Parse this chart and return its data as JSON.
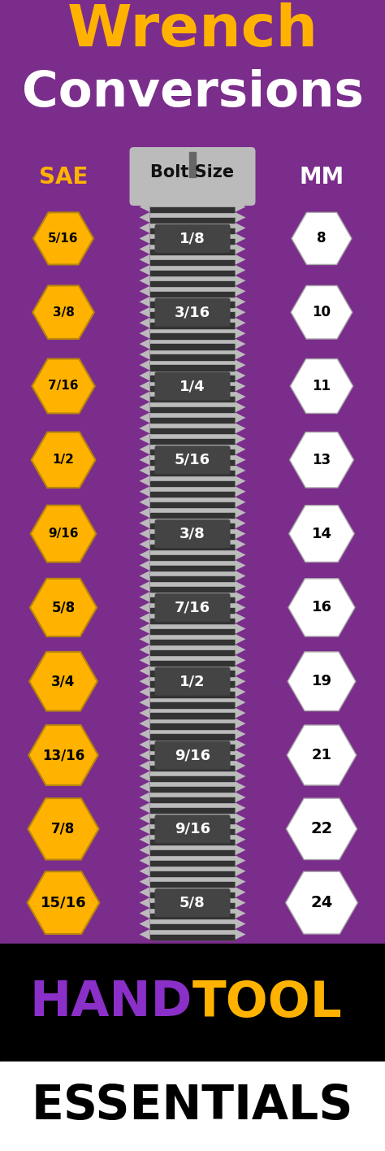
{
  "title_line1": "Wrench",
  "title_line2": "Conversions",
  "title_color_wrench": "#FFB300",
  "title_color_conversions": "#FFFFFF",
  "bg_color_top": "#7B2D8B",
  "bg_color_bottom": "#000000",
  "col_sae_label": "SAE",
  "col_bolt_label": "Bolt Size",
  "col_mm_label": "MM",
  "label_color_sae": "#FFB300",
  "label_color_bolt": "#111111",
  "label_color_mm": "#FFFFFF",
  "rows": [
    {
      "sae": "5/16",
      "bolt": "1/8",
      "mm": "8"
    },
    {
      "sae": "3/8",
      "bolt": "3/16",
      "mm": "10"
    },
    {
      "sae": "7/16",
      "bolt": "1/4",
      "mm": "11"
    },
    {
      "sae": "1/2",
      "bolt": "5/16",
      "mm": "13"
    },
    {
      "sae": "9/16",
      "bolt": "3/8",
      "mm": "14"
    },
    {
      "sae": "5/8",
      "bolt": "7/16",
      "mm": "16"
    },
    {
      "sae": "3/4",
      "bolt": "1/2",
      "mm": "19"
    },
    {
      "sae": "13/16",
      "bolt": "9/16",
      "mm": "21"
    },
    {
      "sae": "7/8",
      "bolt": "9/16",
      "mm": "22"
    },
    {
      "sae": "15/16",
      "bolt": "5/8",
      "mm": "24"
    }
  ],
  "footer_hand": "HAND",
  "footer_tool": "TOOL",
  "footer_essentials": "ESSENTIALS",
  "footer_hand_color": "#8B2FC9",
  "footer_tool_color": "#FFB300",
  "footer_essentials_color": "#000000",
  "hex_sae_color": "#FFB300",
  "hex_sae_text_color": "#000000",
  "hex_mm_color": "#FFFFFF",
  "hex_mm_text_color": "#000000",
  "bolt_bg_color": "#444444",
  "bolt_text_color": "#FFFFFF",
  "bolt_thread_light": "#BBBBBB",
  "bolt_thread_dark": "#333333",
  "bolt_head_color": "#BBBBBB",
  "footer_bg": "#000000",
  "footer_white_bg": "#FFFFFF"
}
